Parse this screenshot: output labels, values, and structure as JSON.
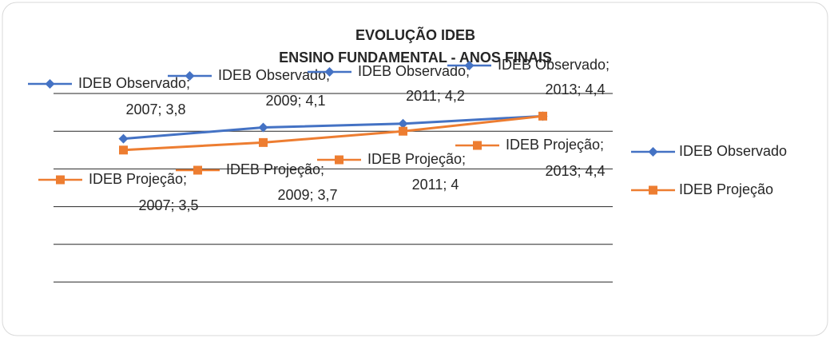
{
  "chart_data": {
    "type": "line",
    "title": "EVOLUÇÃO IDEB",
    "subtitle": "ENSINO FUNDAMENTAL - ANOS FINAIS",
    "categories": [
      null,
      null,
      null,
      null
    ],
    "ylim": [
      0,
      5
    ],
    "yticks": [
      0,
      1,
      2,
      3,
      4,
      5
    ],
    "grid": true,
    "legend": "right",
    "series": [
      {
        "name": "IDEB Observado",
        "color": "#4472c4",
        "values": [
          3.8,
          4.1,
          4.2,
          4.4
        ],
        "value_labels": [
          "IDEB Observado; 2007; 3,8",
          "IDEB Observado; 2009; 4,1",
          "IDEB Observado; 2011; 4,2",
          "IDEB Observado; 2013; 4,4"
        ]
      },
      {
        "name": "IDEB Projeção",
        "color": "#ed7d31",
        "values": [
          3.5,
          3.7,
          4,
          4.4
        ],
        "value_labels": [
          "IDEB Projeção; 2007; 3,5",
          "IDEB Projeção; 2009; 3,7",
          "IDEB Projeção; 2011; 4",
          "IDEB Projeção; 2013; 4,4"
        ]
      }
    ]
  }
}
